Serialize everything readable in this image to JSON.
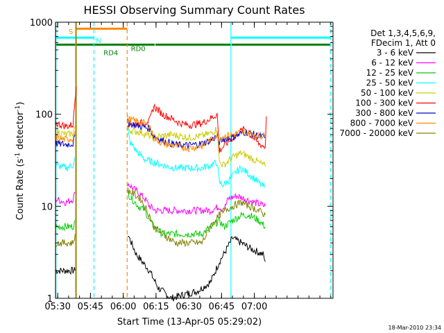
{
  "chart_data": {
    "type": "line",
    "title": "HESSI Observing Summary Count Rates",
    "xlabel": "Start Time (13-Apr-05 05:29:02)",
    "ylabel_main": "Count Rate (s",
    "ylabel_sup": "-1",
    "ylabel_mid": " detector",
    "ylabel_end": ")",
    "yscale": "log",
    "xlim": [
      329,
      456
    ],
    "ylim": [
      1,
      1000
    ],
    "x_unit": "minutes after 00:00 on 13-Apr-05",
    "x_ticks": [
      {
        "t": 330,
        "label": "05:30"
      },
      {
        "t": 345,
        "label": "05:45"
      },
      {
        "t": 360,
        "label": "06:00"
      },
      {
        "t": 375,
        "label": "06:15"
      },
      {
        "t": 390,
        "label": "06:30"
      },
      {
        "t": 405,
        "label": "06:45"
      },
      {
        "t": 420,
        "label": "07:00"
      }
    ],
    "y_ticks": [
      {
        "v": 1,
        "label": "1"
      },
      {
        "v": 10,
        "label": "10"
      },
      {
        "v": 100,
        "label": "100"
      },
      {
        "v": 1000,
        "label": "1000"
      }
    ],
    "legend": {
      "placement": "right",
      "header": [
        "Det 1,3,4,5,6,9,",
        "FDecim 1, Att 0"
      ]
    },
    "series": [
      {
        "name": "3 - 6 keV",
        "color": "#000000",
        "segments": [
          [
            [
              329,
              2
            ],
            [
              334,
              2
            ],
            [
              337,
              2
            ],
            [
              338,
              2
            ]
          ],
          [
            [
              362,
              5
            ],
            [
              366,
              3
            ],
            [
              372,
              2
            ],
            [
              376,
              1.3
            ],
            [
              382,
              1
            ],
            [
              388,
              1.1
            ],
            [
              394,
              1.2
            ],
            [
              400,
              1.5
            ],
            [
              404,
              2.5
            ],
            [
              406,
              3
            ],
            [
              410,
              4.5
            ],
            [
              414,
              4
            ],
            [
              418,
              3.5
            ],
            [
              424,
              3
            ],
            [
              425,
              2.5
            ]
          ]
        ]
      },
      {
        "name": "6 - 12 keV",
        "color": "#ff00ff",
        "segments": [
          [
            [
              329,
              12
            ],
            [
              334,
              11
            ],
            [
              337,
              12
            ],
            [
              338,
              14
            ]
          ],
          [
            [
              362,
              18
            ],
            [
              364,
              16
            ],
            [
              367,
              14
            ],
            [
              370,
              12
            ],
            [
              372,
              10
            ],
            [
              375,
              9
            ],
            [
              380,
              9
            ],
            [
              390,
              9
            ],
            [
              400,
              9
            ],
            [
              404,
              10
            ],
            [
              406,
              9
            ],
            [
              408,
              12
            ],
            [
              412,
              13
            ],
            [
              416,
              12
            ],
            [
              420,
              11
            ],
            [
              425,
              10
            ]
          ]
        ]
      },
      {
        "name": "12 - 25 keV",
        "color": "#00cc00",
        "segments": [
          [
            [
              329,
              6
            ],
            [
              334,
              6
            ],
            [
              337,
              6
            ],
            [
              338,
              7
            ]
          ],
          [
            [
              362,
              14
            ],
            [
              364,
              12
            ],
            [
              367,
              10
            ],
            [
              370,
              9
            ],
            [
              372,
              7
            ],
            [
              374,
              6
            ],
            [
              378,
              5
            ],
            [
              388,
              5
            ],
            [
              396,
              5
            ],
            [
              400,
              6
            ],
            [
              404,
              7
            ],
            [
              406,
              6
            ],
            [
              410,
              7
            ],
            [
              414,
              8
            ],
            [
              418,
              8
            ],
            [
              422,
              7
            ],
            [
              425,
              6
            ]
          ]
        ]
      },
      {
        "name": "25 - 50 keV",
        "color": "#00ffff",
        "segments": [
          [
            [
              329,
              28
            ],
            [
              334,
              26
            ],
            [
              337,
              28
            ],
            [
              338,
              34
            ]
          ],
          [
            [
              362,
              70
            ],
            [
              363,
              50
            ],
            [
              366,
              40
            ],
            [
              370,
              32
            ],
            [
              374,
              30
            ],
            [
              378,
              28
            ],
            [
              384,
              26
            ],
            [
              390,
              26
            ],
            [
              396,
              26
            ],
            [
              400,
              28
            ],
            [
              403,
              30
            ],
            [
              404,
              18
            ],
            [
              406,
              17
            ],
            [
              409,
              20
            ],
            [
              412,
              24
            ],
            [
              414,
              26
            ],
            [
              416,
              24
            ],
            [
              420,
              20
            ],
            [
              423,
              17
            ],
            [
              425,
              16
            ]
          ]
        ]
      },
      {
        "name": "50 - 100 keV",
        "color": "#cccc00",
        "segments": [
          [
            [
              329,
              65
            ],
            [
              334,
              60
            ],
            [
              337,
              62
            ],
            [
              338,
              75
            ]
          ],
          [
            [
              362,
              70
            ],
            [
              364,
              66
            ],
            [
              368,
              64
            ],
            [
              372,
              58
            ],
            [
              374,
              56
            ],
            [
              378,
              58
            ],
            [
              382,
              60
            ],
            [
              386,
              58
            ],
            [
              390,
              56
            ],
            [
              396,
              58
            ],
            [
              400,
              62
            ],
            [
              403,
              70
            ],
            [
              404,
              30
            ],
            [
              406,
              28
            ],
            [
              410,
              34
            ],
            [
              414,
              38
            ],
            [
              418,
              34
            ],
            [
              422,
              30
            ],
            [
              425,
              27
            ]
          ]
        ]
      },
      {
        "name": "100 - 300 keV",
        "color": "#ff0000",
        "segments": [
          [
            [
              329,
              80
            ],
            [
              334,
              74
            ],
            [
              337,
              77
            ],
            [
              338,
              150
            ],
            [
              338.5,
              200
            ]
          ],
          [
            [
              362,
              80
            ],
            [
              364,
              78
            ],
            [
              368,
              80
            ],
            [
              372,
              84
            ],
            [
              374,
              122
            ],
            [
              378,
              100
            ],
            [
              382,
              90
            ],
            [
              386,
              80
            ],
            [
              390,
              76
            ],
            [
              396,
              80
            ],
            [
              400,
              90
            ],
            [
              403,
              100
            ],
            [
              404,
              40
            ],
            [
              406,
              45
            ],
            [
              410,
              55
            ],
            [
              414,
              66
            ],
            [
              416,
              70
            ],
            [
              418,
              60
            ],
            [
              422,
              48
            ],
            [
              425,
              44
            ],
            [
              425.5,
              95
            ]
          ]
        ]
      },
      {
        "name": "300 - 800 keV",
        "color": "#0000cc",
        "segments": [
          [
            [
              329,
              48
            ],
            [
              334,
              47
            ],
            [
              337,
              48
            ],
            [
              338,
              60
            ]
          ],
          [
            [
              362,
              82
            ],
            [
              364,
              78
            ],
            [
              368,
              74
            ],
            [
              372,
              70
            ],
            [
              374,
              58
            ],
            [
              378,
              52
            ],
            [
              382,
              48
            ],
            [
              386,
              46
            ],
            [
              390,
              46
            ],
            [
              396,
              48
            ],
            [
              400,
              52
            ],
            [
              403,
              58
            ],
            [
              404,
              50
            ],
            [
              406,
              54
            ],
            [
              410,
              56
            ],
            [
              414,
              62
            ],
            [
              416,
              64
            ],
            [
              418,
              62
            ],
            [
              422,
              58
            ],
            [
              425,
              56
            ]
          ]
        ]
      },
      {
        "name": "800 - 7000 keV",
        "color": "#ff8800",
        "segments": [
          [
            [
              329,
              55
            ],
            [
              334,
              53
            ],
            [
              337,
              55
            ],
            [
              338,
              66
            ]
          ],
          [
            [
              362,
              90
            ],
            [
              364,
              86
            ],
            [
              368,
              82
            ],
            [
              372,
              76
            ],
            [
              374,
              55
            ],
            [
              378,
              48
            ],
            [
              382,
              46
            ],
            [
              386,
              44
            ],
            [
              390,
              43
            ],
            [
              396,
              45
            ],
            [
              400,
              52
            ],
            [
              403,
              60
            ],
            [
              404,
              55
            ],
            [
              406,
              58
            ],
            [
              410,
              60
            ],
            [
              414,
              64
            ],
            [
              418,
              62
            ],
            [
              422,
              58
            ],
            [
              425,
              58
            ]
          ]
        ]
      },
      {
        "name": "7000 - 20000 keV",
        "color": "#808000",
        "segments": [
          [
            [
              329,
              4
            ],
            [
              334,
              4
            ],
            [
              337,
              4
            ],
            [
              338,
              5
            ]
          ],
          [
            [
              362,
              15
            ],
            [
              364,
              14
            ],
            [
              368,
              12
            ],
            [
              372,
              8
            ],
            [
              374,
              6
            ],
            [
              378,
              5
            ],
            [
              384,
              4
            ],
            [
              390,
              4
            ],
            [
              396,
              4
            ],
            [
              400,
              6
            ],
            [
              404,
              8
            ],
            [
              406,
              9
            ],
            [
              410,
              10
            ],
            [
              414,
              11
            ],
            [
              418,
              10
            ],
            [
              422,
              9
            ],
            [
              425,
              8
            ]
          ]
        ]
      }
    ],
    "vlines": [
      {
        "t": 329.2,
        "color": "#00ffff",
        "style": "solid"
      },
      {
        "t": 338.2,
        "color": "#ff8800",
        "style": "solid"
      },
      {
        "t": 338.5,
        "color": "#808000",
        "style": "solid"
      },
      {
        "t": 346.6,
        "color": "#00ffff",
        "style": "dashed"
      },
      {
        "t": 361.8,
        "color": "#ff8800",
        "style": "dashed"
      },
      {
        "t": 409.3,
        "color": "#00ffff",
        "style": "solid"
      },
      {
        "t": 454.8,
        "color": "#00ffff",
        "style": "dashed"
      }
    ],
    "flag_bars": [
      {
        "label": "S",
        "color": "#ff8800",
        "y": 850,
        "segments": [
          [
            338.2,
            361.8
          ]
        ],
        "label_t": 335,
        "label_y": 800
      },
      {
        "label": "N",
        "color": "#00ffff",
        "y": 680,
        "segments": [
          [
            329.2,
            346.6
          ],
          [
            409.3,
            454.8
          ]
        ],
        "label_t": 347.5,
        "label_y": 640
      },
      {
        "label": "RD0",
        "color": "#008000",
        "y": 570,
        "segments": [
          [
            329.2,
            374.4
          ],
          [
            374.7,
            409.3
          ],
          [
            409.6,
            454.8
          ]
        ],
        "label_t": 363.5,
        "label_y": 520
      },
      {
        "label": "RD4",
        "color": "#008000",
        "y": 510,
        "segments": [],
        "label_t": 351,
        "label_y": 470
      }
    ]
  },
  "timestamp": "18-Mar-2010 23:34"
}
